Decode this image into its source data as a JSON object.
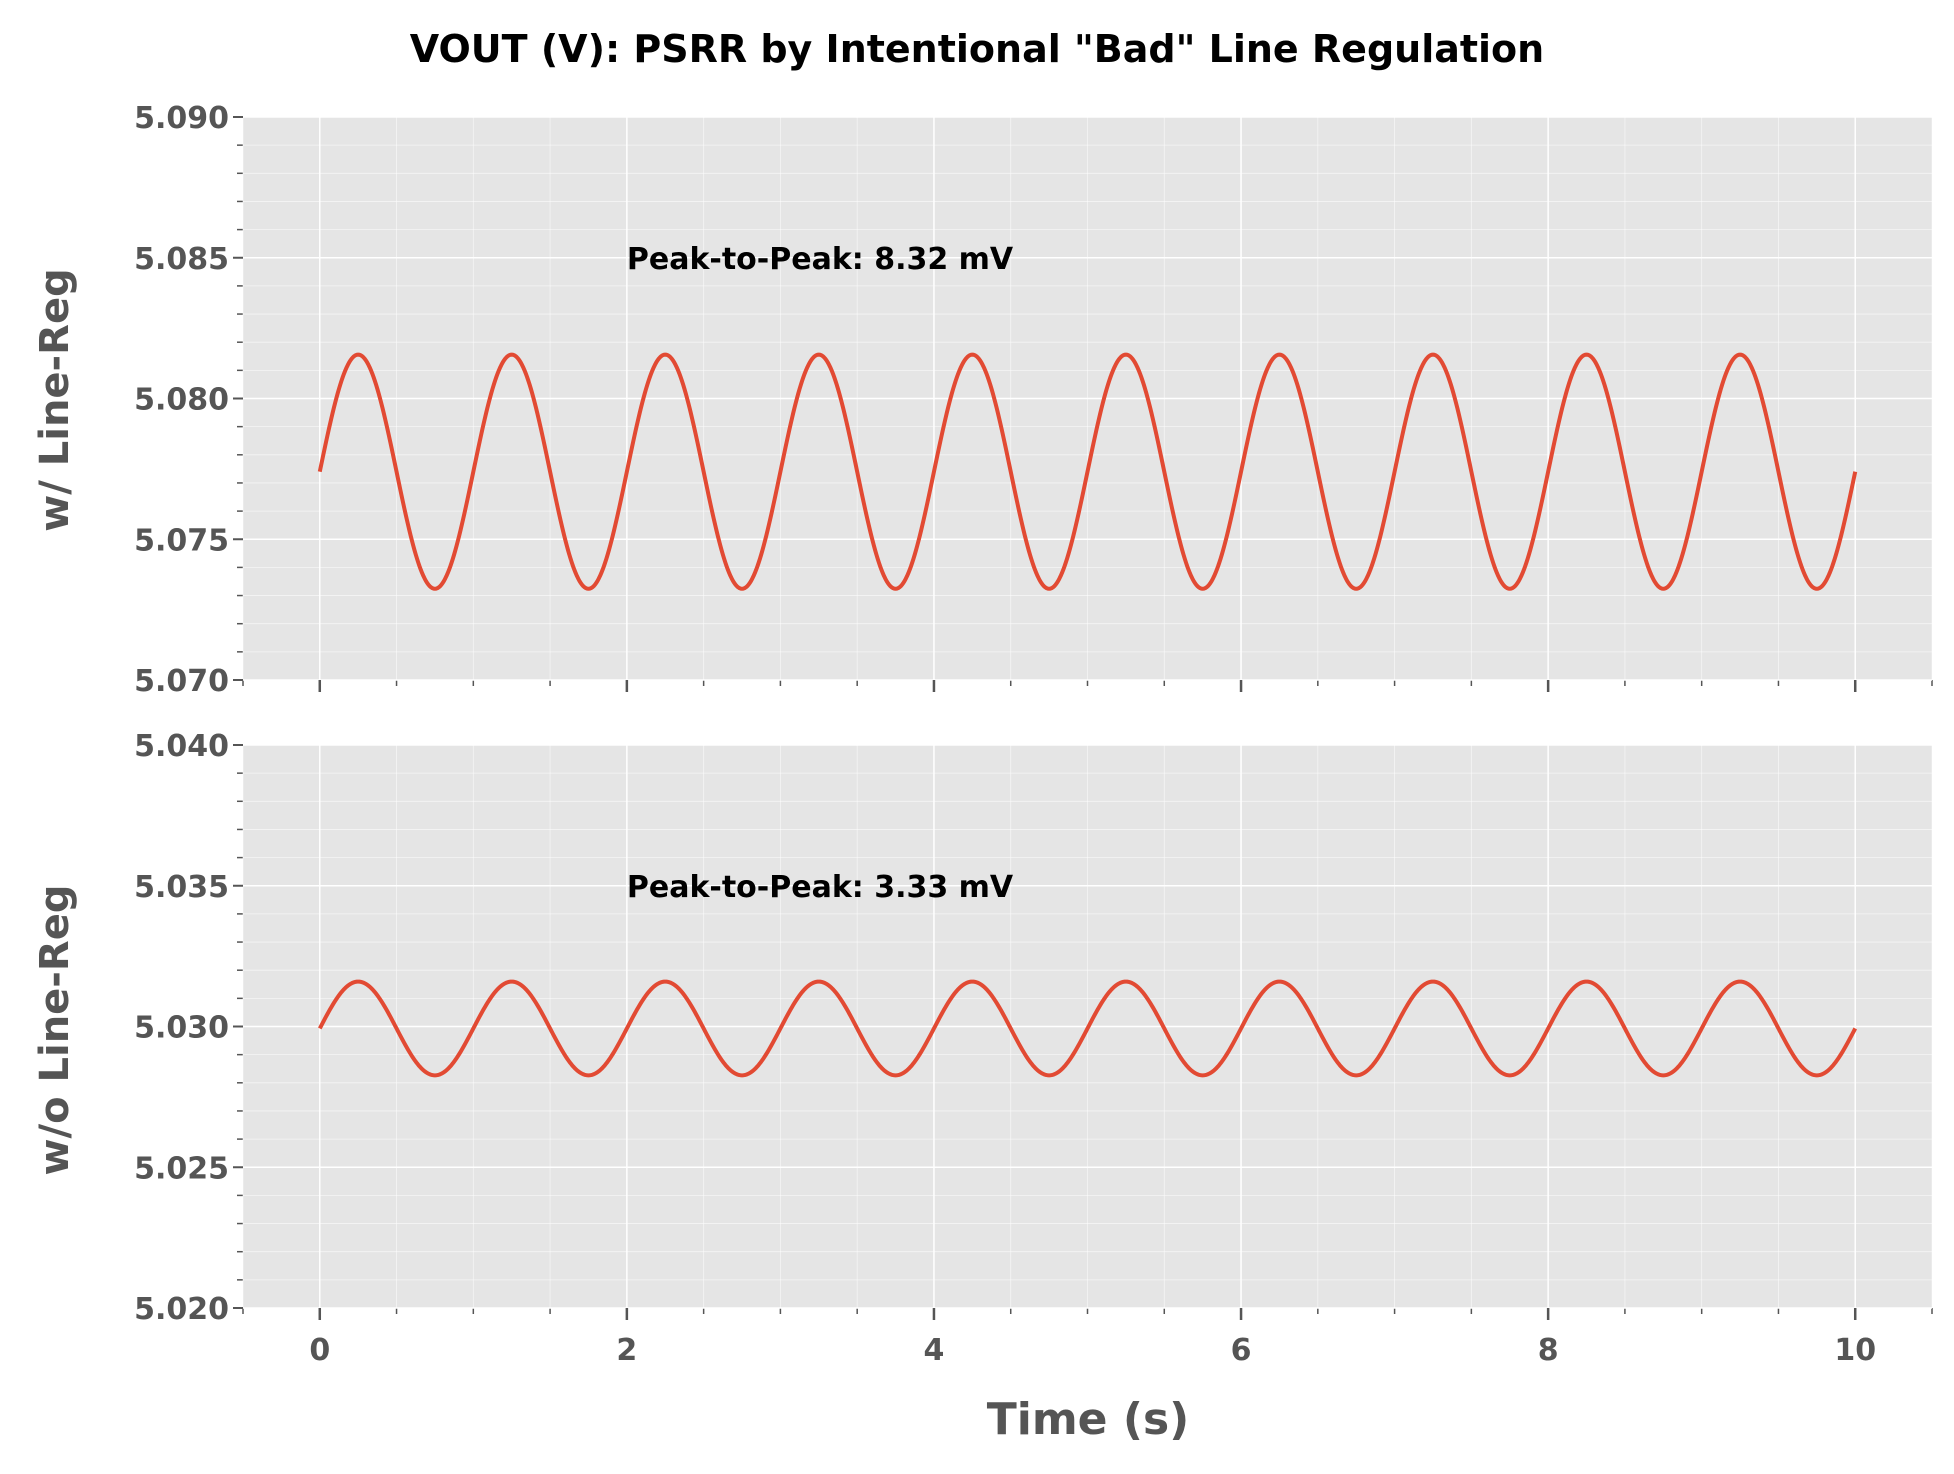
{
  "chart_data": {
    "type": "line",
    "title": "VOUT (V): PSRR by Intentional \"Bad\" Line Regulation",
    "xlabel": "Time (s)",
    "xlim": [
      -0.5,
      10.5
    ],
    "xticks": [
      0,
      2,
      4,
      6,
      8,
      10
    ],
    "xtick_labels": [
      "0",
      "2",
      "4",
      "6",
      "8",
      "10"
    ],
    "grid": true,
    "colors": {
      "line": "#E24A33",
      "axes_bg": "#E5E5E5",
      "grid": "#FFFFFF",
      "tick_text": "#555555"
    },
    "panels": [
      {
        "ylabel": "w/  Line-Reg",
        "ylim": [
          5.07,
          5.09
        ],
        "yticks": [
          5.07,
          5.075,
          5.08,
          5.085,
          5.09
        ],
        "ytick_labels": [
          "5.070",
          "5.075",
          "5.080",
          "5.085",
          "5.090"
        ],
        "annotation": {
          "text": "Peak-to-Peak: 8.32 mV",
          "x": 2,
          "y": 5.085
        },
        "series": {
          "function": "sine",
          "offset": 5.0774,
          "amplitude": 0.00416,
          "frequency_hz": 1,
          "phase_rad": 0,
          "x_range": [
            0,
            10
          ]
        }
      },
      {
        "ylabel": "w/o Line-Reg",
        "ylim": [
          5.02,
          5.04
        ],
        "yticks": [
          5.02,
          5.025,
          5.03,
          5.035,
          5.04
        ],
        "ytick_labels": [
          "5.020",
          "5.025",
          "5.030",
          "5.035",
          "5.040"
        ],
        "annotation": {
          "text": "Peak-to-Peak: 3.33 mV",
          "x": 2,
          "y": 5.035
        },
        "series": {
          "function": "sine",
          "offset": 5.02993,
          "amplitude": 0.001665,
          "frequency_hz": 1,
          "phase_rad": 0,
          "x_range": [
            0,
            10
          ]
        }
      }
    ]
  }
}
